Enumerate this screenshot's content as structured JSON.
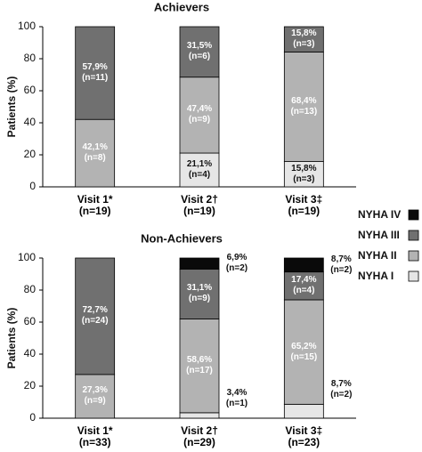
{
  "chart_data": [
    {
      "type": "bar",
      "stacked": true,
      "title": "Achievers",
      "ylabel": "Patients (%)",
      "categories": [
        "Visit 1*\n(n=19)",
        "Visit 2†\n(n=19)",
        "Visit 3‡\n(n=19)"
      ],
      "ylim": [
        0,
        100
      ],
      "yticks": [
        0,
        20,
        40,
        60,
        80,
        100
      ],
      "series": [
        {
          "name": "NYHA I",
          "color": "#e6e6e6",
          "values": [
            null,
            21.1,
            15.8
          ],
          "value_labels": [
            null,
            "21,1%\n(n=4)",
            "15,8%\n(n=3)"
          ]
        },
        {
          "name": "NYHA II",
          "color": "#b3b3b3",
          "values": [
            42.1,
            47.4,
            68.4
          ],
          "value_labels": [
            "42,1%\n(n=8)",
            "47,4%\n(n=9)",
            "68,4%\n(n=13)"
          ]
        },
        {
          "name": "NYHA III",
          "color": "#707070",
          "values": [
            57.9,
            31.5,
            15.8
          ],
          "value_labels": [
            "57,9%\n(n=11)",
            "31,5%\n(n=6)",
            "15,8%\n(n=3)"
          ]
        },
        {
          "name": "NYHA IV",
          "color": "#0a0a0a",
          "values": [
            null,
            null,
            null
          ],
          "value_labels": [
            null,
            null,
            null
          ]
        }
      ]
    },
    {
      "type": "bar",
      "stacked": true,
      "title": "Non-Achievers",
      "ylabel": "Patients (%)",
      "categories": [
        "Visit 1*\n(n=33)",
        "Visit 2†\n(n=29)",
        "Visit 3‡\n(n=23)"
      ],
      "ylim": [
        0,
        100
      ],
      "yticks": [
        0,
        20,
        40,
        60,
        80,
        100
      ],
      "series": [
        {
          "color": "#e6e6e6",
          "values": [
            null,
            3.4,
            8.7
          ],
          "value_labels": [
            null,
            "3,4%\n(n=1)",
            "8,7%\n(n=2)"
          ]
        },
        {
          "color": "#b3b3b3",
          "values": [
            27.3,
            58.6,
            65.2
          ],
          "value_labels": [
            "27,3%\n(n=9)",
            "58,6%\n(n=17)",
            "65,2%\n(n=15)"
          ]
        },
        {
          "color": "#707070",
          "values": [
            72.7,
            31.1,
            17.4
          ],
          "value_labels": [
            "72,7%\n(n=24)",
            "31,1%\n(n=9)",
            "17,4%\n(n=4)"
          ]
        },
        {
          "color": "#0a0a0a",
          "values": [
            null,
            6.9,
            8.7
          ],
          "value_labels": [
            null,
            "6,9%\n(n=2)",
            "8,7%\n(n=2)"
          ]
        }
      ]
    }
  ]
}
